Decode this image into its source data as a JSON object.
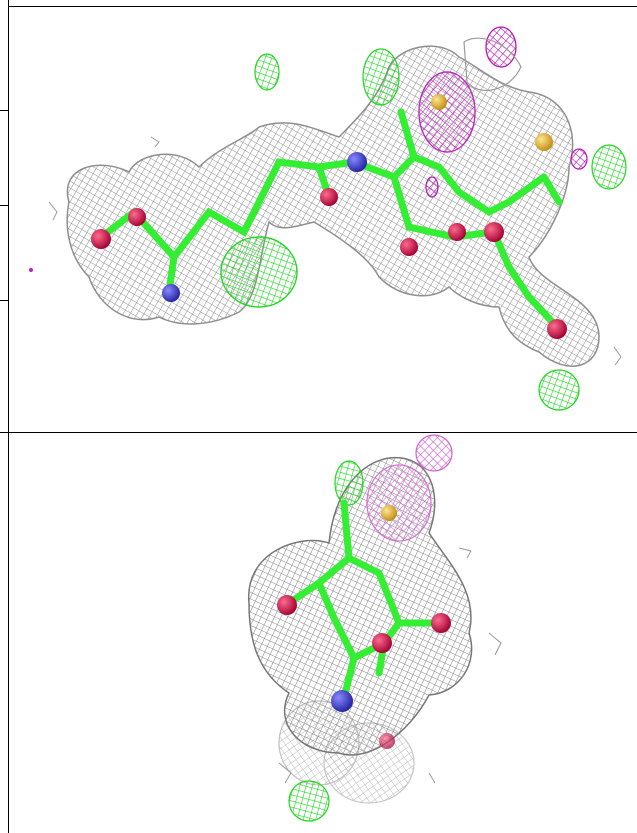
{
  "figure": {
    "panels": [
      {
        "view": "top",
        "description_name": "electron-density-mesh-extended-ligand"
      },
      {
        "view": "bottom",
        "description_name": "electron-density-mesh-end-on-ligand"
      }
    ],
    "colors": {
      "mesh_grey": "#9a9a9a",
      "mesh_green": "#22dd22",
      "mesh_magenta": "#c020c0",
      "carbon_green": "#33ee33",
      "oxygen_red": "#d0104a",
      "nitrogen_blue": "#3a3ad0",
      "sulfur_yellow": "#e8b830"
    }
  }
}
